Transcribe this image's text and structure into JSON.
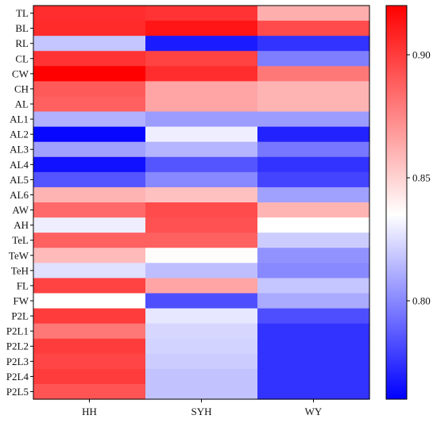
{
  "chart_data": {
    "type": "heatmap",
    "title": "",
    "xlabel": "",
    "ylabel": "",
    "columns": [
      "HH",
      "SYH",
      "WY"
    ],
    "rows": [
      "TL",
      "BL",
      "RL",
      "CL",
      "CW",
      "CH",
      "AL",
      "AL1",
      "AL2",
      "AL3",
      "AL4",
      "AL5",
      "AL6",
      "AW",
      "AH",
      "TeL",
      "TeW",
      "TeH",
      "FL",
      "FW",
      "P2L",
      "P2L1",
      "P2L2",
      "P2L3",
      "P2L4",
      "P2L5"
    ],
    "values": [
      [
        0.905,
        0.903,
        0.862
      ],
      [
        0.906,
        0.913,
        0.895
      ],
      [
        0.818,
        0.768,
        0.775
      ],
      [
        0.903,
        0.898,
        0.797
      ],
      [
        0.922,
        0.905,
        0.88
      ],
      [
        0.89,
        0.865,
        0.86
      ],
      [
        0.888,
        0.865,
        0.86
      ],
      [
        0.812,
        0.806,
        0.806
      ],
      [
        0.762,
        0.83,
        0.77
      ],
      [
        0.807,
        0.813,
        0.795
      ],
      [
        0.765,
        0.785,
        0.775
      ],
      [
        0.785,
        0.8,
        0.78
      ],
      [
        0.86,
        0.856,
        0.807
      ],
      [
        0.885,
        0.895,
        0.86
      ],
      [
        0.83,
        0.893,
        0.835
      ],
      [
        0.888,
        0.888,
        0.82
      ],
      [
        0.858,
        0.836,
        0.803
      ],
      [
        0.826,
        0.816,
        0.8
      ],
      [
        0.898,
        0.865,
        0.818
      ],
      [
        0.835,
        0.783,
        0.81
      ],
      [
        0.9,
        0.828,
        0.783
      ],
      [
        0.88,
        0.823,
        0.775
      ],
      [
        0.9,
        0.822,
        0.775
      ],
      [
        0.897,
        0.82,
        0.775
      ],
      [
        0.9,
        0.817,
        0.775
      ],
      [
        0.892,
        0.817,
        0.775
      ]
    ],
    "colorbar": {
      "min": 0.76,
      "max": 0.92,
      "center": 0.835,
      "ticks": [
        0.8,
        0.85,
        0.9
      ],
      "tick_labels": [
        "0.80",
        "0.85",
        "0.90"
      ],
      "colors": {
        "low": "#0000ff",
        "mid": "#ffffff",
        "high": "#ff0000"
      }
    },
    "grid": false,
    "legend": "right"
  }
}
